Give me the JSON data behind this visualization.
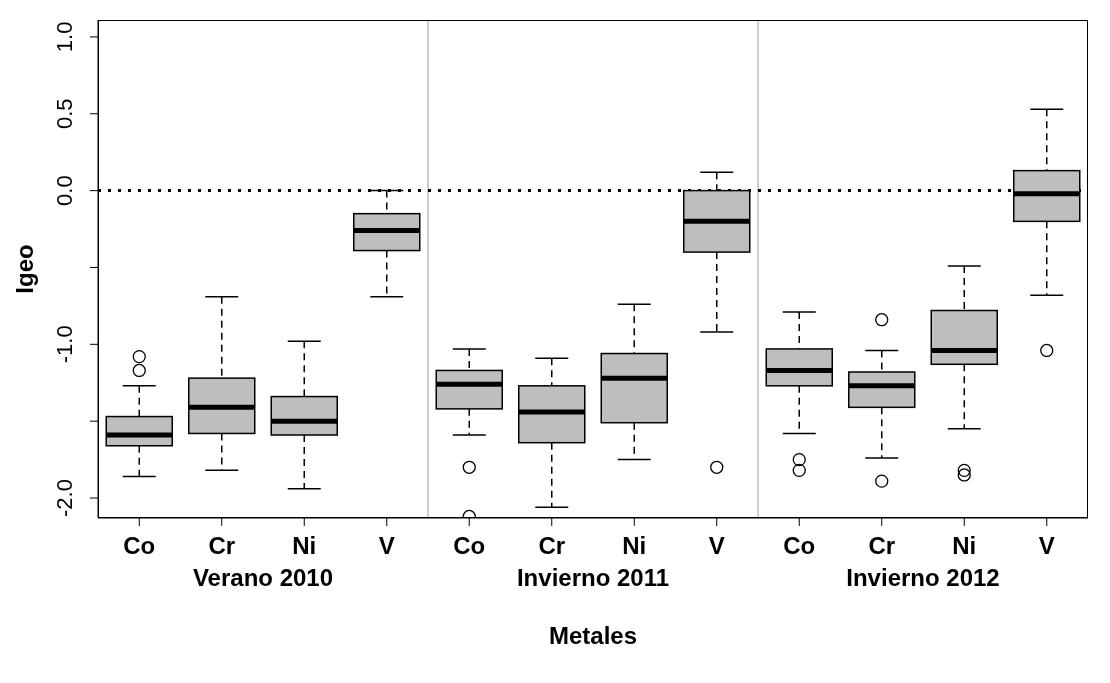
{
  "chart_data": {
    "type": "box",
    "xlabel": "Metales",
    "ylabel": "Igeo",
    "categories": [
      "Co",
      "Cr",
      "Ni",
      "V",
      "Co",
      "Cr",
      "Ni",
      "V",
      "Co",
      "Cr",
      "Ni",
      "V"
    ],
    "annotations": [
      "Verano 2010",
      "Invierno 2011",
      "Invierno 2012"
    ],
    "color": "#bebebe",
    "boxes": [
      {
        "low": -1.86,
        "q1": -1.66,
        "median": -1.59,
        "q3": -1.47,
        "high": -1.27,
        "outliers": [
          -1.08,
          -1.17
        ]
      },
      {
        "low": -1.82,
        "q1": -1.58,
        "median": -1.41,
        "q3": -1.22,
        "high": -0.69
      },
      {
        "low": -1.94,
        "q1": -1.59,
        "median": -1.5,
        "q3": -1.34,
        "high": -0.98
      },
      {
        "low": -0.69,
        "q1": -0.39,
        "median": -0.26,
        "q3": -0.15,
        "high": 0.0
      },
      {
        "low": -1.59,
        "q1": -1.42,
        "median": -1.26,
        "q3": -1.17,
        "high": -1.03,
        "outliers": [
          -1.8,
          -2.12
        ]
      },
      {
        "low": -2.06,
        "q1": -1.64,
        "median": -1.44,
        "q3": -1.27,
        "high": -1.09
      },
      {
        "low": -1.75,
        "q1": -1.51,
        "median": -1.22,
        "q3": -1.06,
        "high": -0.74
      },
      {
        "low": -0.92,
        "q1": -0.4,
        "median": -0.2,
        "q3": 0.0,
        "high": 0.12,
        "outliers": [
          -1.8
        ]
      },
      {
        "low": -1.58,
        "q1": -1.27,
        "median": -1.17,
        "q3": -1.03,
        "high": -0.79,
        "outliers": [
          -1.75,
          -1.82
        ]
      },
      {
        "low": -1.74,
        "q1": -1.41,
        "median": -1.27,
        "q3": -1.18,
        "high": -1.04,
        "outliers": [
          -0.84,
          -1.89
        ]
      },
      {
        "low": -1.55,
        "q1": -1.13,
        "median": -1.04,
        "q3": -0.78,
        "high": -0.49,
        "outliers": [
          -1.82,
          -1.85
        ]
      },
      {
        "low": -0.68,
        "q1": -0.2,
        "median": -0.02,
        "q3": 0.13,
        "high": 0.53,
        "outliers": [
          -1.04
        ]
      }
    ],
    "ylim": [
      -2.13,
      1.11
    ],
    "yticks": [
      {
        "value": -2,
        "label": "-2.0"
      },
      {
        "value": -1.5,
        "label": null
      },
      {
        "value": -1,
        "label": "-1.0"
      },
      {
        "value": -0.5,
        "label": null
      },
      {
        "value": 0,
        "label": "0.0"
      },
      {
        "value": 0.5,
        "label": "0.5"
      },
      {
        "value": 1,
        "label": "1.0"
      }
    ],
    "ref_lines": [
      {
        "axis": "y",
        "value": 0,
        "label": null,
        "color": "#000000"
      }
    ],
    "line_style": "dotted"
  }
}
